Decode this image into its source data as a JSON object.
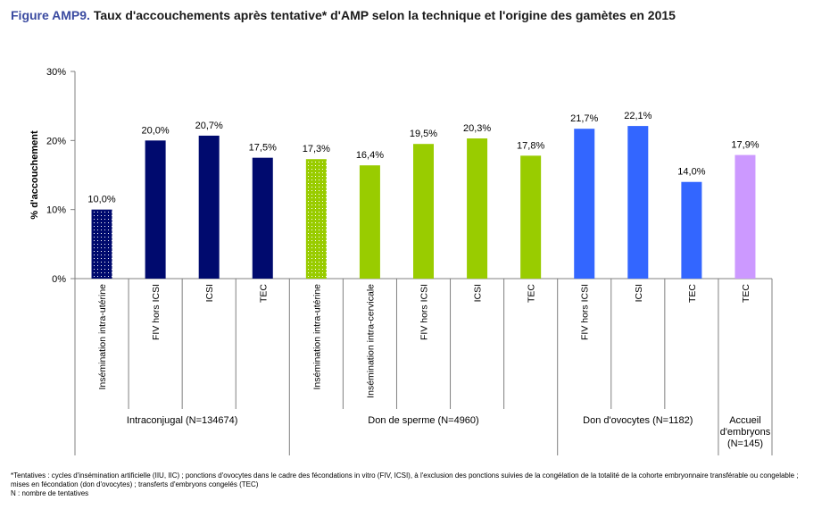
{
  "title": {
    "prefix": "Figure AMP9.",
    "text": "Taux d'accouchements après tentative* d'AMP selon la technique et l'origine des gamètes en 2015"
  },
  "footnote": {
    "line1": "*Tentatives : cycles d'insémination artificielle (IIU, IIC) ; ponctions d'ovocytes dans le cadre des fécondations in vitro (FIV, ICSI), à l'exclusion des ponctions suivies de la congélation de la totalité de la cohorte embryonnaire transférable ou congelable ;",
    "line2": "mises en fécondation (don d'ovocytes) ; transferts d'embryons congelés (TEC)",
    "line3": "N : nombre de tentatives"
  },
  "chart_data": {
    "type": "bar",
    "ylabel": "% d'accouchement",
    "ylim": [
      0,
      30
    ],
    "yticks": [
      "0%",
      "10%",
      "20%",
      "30%"
    ],
    "grid": false,
    "categories": [
      "Insémination intra-utérine",
      "FIV hors ICSI",
      "ICSI",
      "TEC",
      "Insémination intra-utérine",
      "Insémination intra-cervicale",
      "FIV hors ICSI",
      "ICSI",
      "TEC",
      "FIV hors ICSI",
      "ICSI",
      "TEC",
      "TEC"
    ],
    "values": [
      10.0,
      20.0,
      20.7,
      17.5,
      17.3,
      16.4,
      19.5,
      20.3,
      17.8,
      21.7,
      22.1,
      14.0,
      17.9
    ],
    "value_labels": [
      "10,0%",
      "20,0%",
      "20,7%",
      "17,5%",
      "17,3%",
      "16,4%",
      "19,5%",
      "20,3%",
      "17,8%",
      "21,7%",
      "22,1%",
      "14,0%",
      "17,9%"
    ],
    "groups": [
      {
        "label": "Intraconjugal (N=134674)",
        "start": 0,
        "count": 4,
        "color": "#000a6e",
        "dotted_first": true
      },
      {
        "label": "Don de sperme (N=4960)",
        "start": 4,
        "count": 5,
        "color": "#99cc00",
        "dotted_first": true
      },
      {
        "label": "Don d'ovocytes (N=1182)",
        "start": 9,
        "count": 3,
        "color": "#3366ff",
        "dotted_first": false
      },
      {
        "label": "Accueil\nd'embryons\n(N=145)",
        "start": 12,
        "count": 1,
        "color": "#cc99ff",
        "dotted_first": false
      }
    ]
  }
}
